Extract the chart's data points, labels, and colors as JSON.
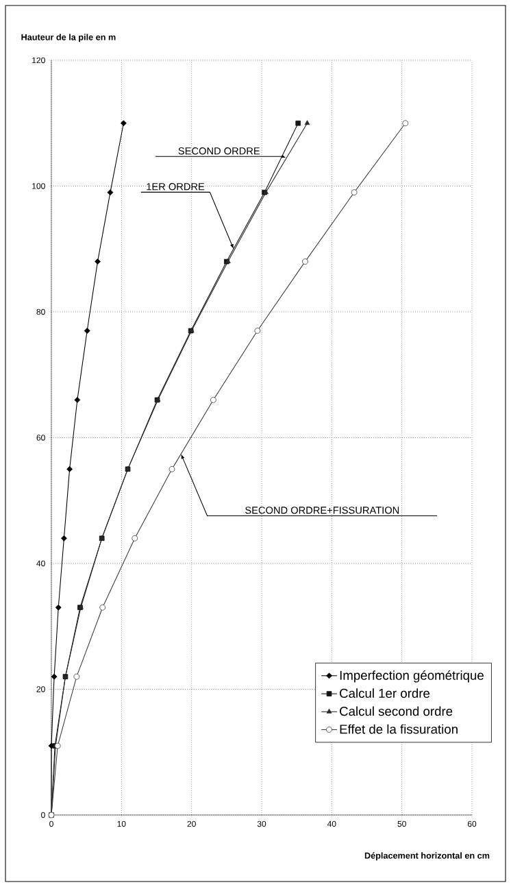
{
  "chart_data": {
    "type": "line",
    "xlabel": "Déplacement horizontal en cm",
    "ylabel": "Hauteur de la pile en m",
    "series": [
      {
        "name": "Imperfection géométrique",
        "color": "#000000",
        "marker": "diamond",
        "x": [
          0,
          0,
          0.4,
          1.0,
          1.8,
          2.6,
          3.7,
          5.1,
          6.6,
          8.4,
          10.3
        ],
        "values": [
          0,
          11,
          22,
          33,
          44,
          55,
          66,
          77,
          88,
          99,
          110
        ]
      },
      {
        "name": "Calcul 1er ordre",
        "color": "#141414",
        "marker": "square",
        "x": [
          0,
          0.5,
          2.0,
          4.1,
          7.2,
          10.9,
          15.1,
          19.9,
          25.0,
          30.4,
          35.2
        ],
        "values": [
          0,
          11,
          22,
          33,
          44,
          55,
          66,
          77,
          88,
          99,
          110
        ]
      },
      {
        "name": "Calcul second ordre",
        "color": "#282828",
        "marker": "triangle",
        "x": [
          0,
          0.6,
          2.0,
          4.2,
          7.2,
          10.9,
          15.2,
          20.0,
          25.2,
          30.6,
          36.5
        ],
        "values": [
          0,
          11,
          22,
          33,
          44,
          55,
          66,
          77,
          88,
          99,
          110
        ]
      },
      {
        "name": "Effet de la fissuration",
        "color": "#3c3c3c",
        "marker": "circle",
        "x": [
          0,
          0.9,
          3.6,
          7.3,
          11.9,
          17.2,
          23.1,
          29.4,
          36.2,
          43.2,
          50.5
        ],
        "values": [
          0,
          11,
          22,
          33,
          44,
          55,
          66,
          77,
          88,
          99,
          110
        ]
      }
    ],
    "xlim": [
      0,
      60
    ],
    "xticks": [
      0,
      10,
      20,
      30,
      40,
      50,
      60
    ],
    "ylim": [
      0,
      120
    ],
    "yticks": [
      0,
      20,
      40,
      60,
      80,
      100,
      120
    ],
    "grid": true,
    "legend": "bottom right",
    "line_style": "solid",
    "annotations": [
      {
        "text": "SECOND ORDRE",
        "x": 33.5,
        "y": 104.5
      },
      {
        "text": "1ER ORDRE",
        "x": 26.0,
        "y": 90.0
      },
      {
        "text": "SECOND ORDRE+FISSURATION",
        "x": 18.5,
        "y": 57.4
      }
    ]
  }
}
